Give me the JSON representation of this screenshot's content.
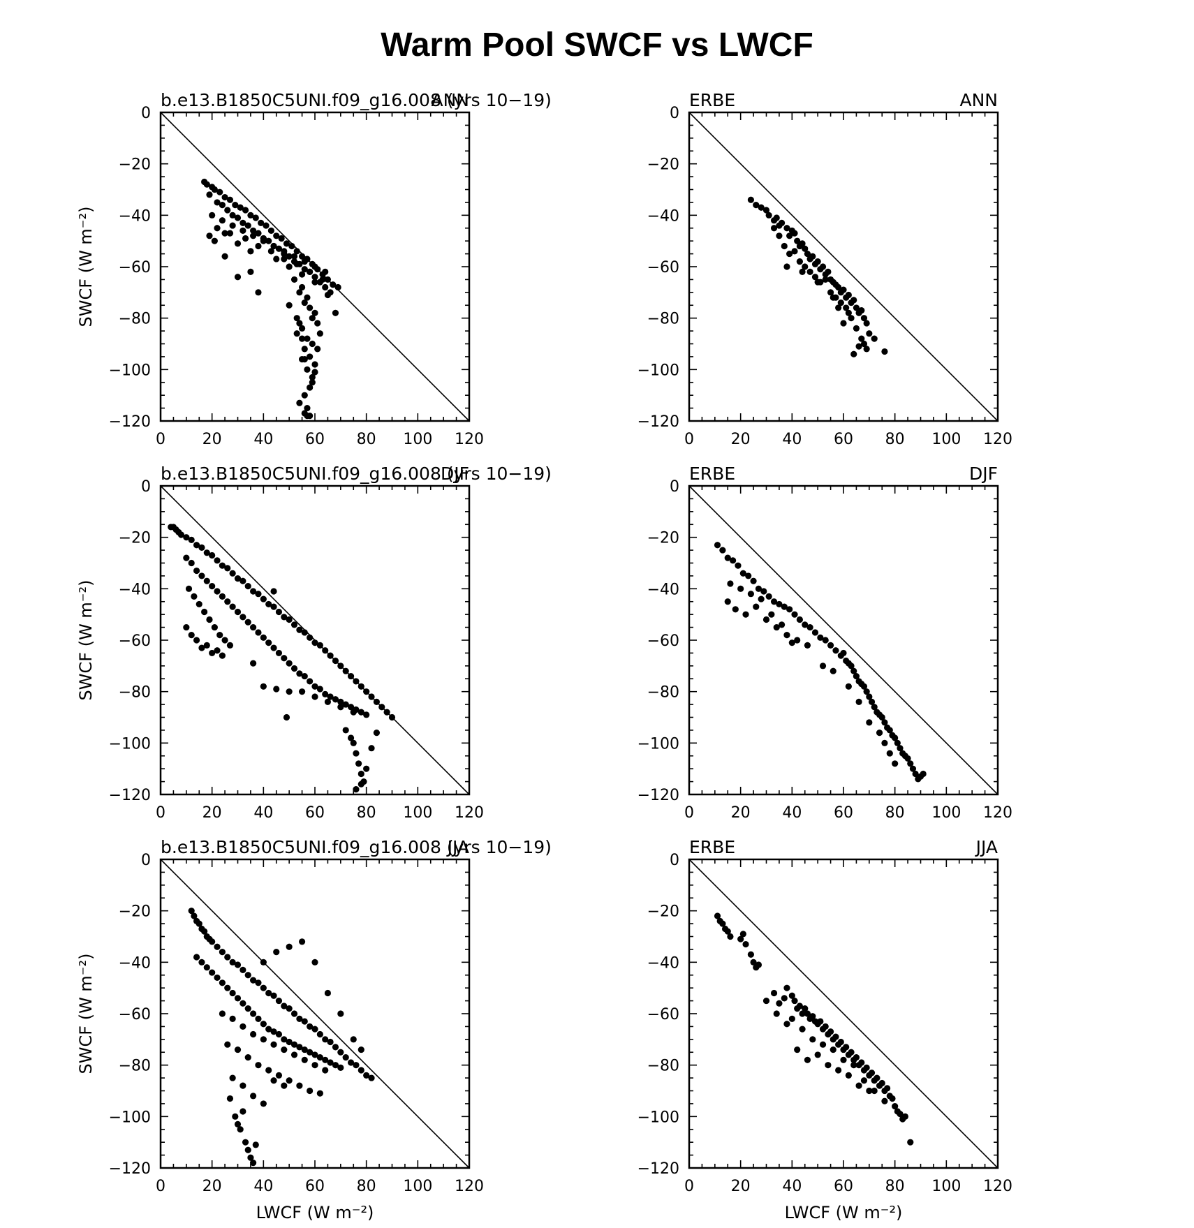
{
  "figure": {
    "title": "Warm Pool SWCF vs LWCF"
  },
  "chart_data": [
    {
      "type": "scatter",
      "left_label": "b.e13.B1850C5UNI.f09_g16.008 (yrs  10−19)",
      "right_label": "ANN",
      "xlabel": "",
      "ylabel": "SWCF (W m⁻²)",
      "xlim": [
        0,
        120
      ],
      "ylim": [
        -120,
        0
      ],
      "xticks": [
        "0",
        "20",
        "40",
        "60",
        "80",
        "100",
        "120"
      ],
      "yticks": [
        "0",
        "−20",
        "−40",
        "−60",
        "−80",
        "−100",
        "−120"
      ],
      "diagonal": true,
      "x": [
        17,
        18,
        20,
        21,
        23,
        25,
        27,
        29,
        31,
        33,
        35,
        37,
        39,
        41,
        43,
        45,
        47,
        49,
        51,
        53,
        55,
        57,
        59,
        61,
        63,
        65,
        67,
        69,
        19,
        22,
        24,
        26,
        28,
        30,
        32,
        34,
        36,
        38,
        40,
        42,
        44,
        46,
        48,
        50,
        52,
        54,
        56,
        58,
        60,
        62,
        64,
        66,
        20,
        24,
        28,
        32,
        36,
        40,
        44,
        48,
        52,
        56,
        60,
        64,
        22,
        27,
        33,
        38,
        43,
        48,
        53,
        58,
        63,
        19,
        21,
        25,
        30,
        35,
        40,
        45,
        50,
        55,
        60,
        65,
        68,
        52,
        54,
        55,
        56,
        57,
        58,
        59,
        60,
        61,
        62,
        55,
        57,
        59,
        61,
        53,
        56,
        58,
        60,
        57,
        59,
        55,
        58,
        56,
        60,
        54,
        57,
        59,
        56,
        58,
        57,
        55,
        54,
        56,
        50,
        53,
        30,
        38,
        25,
        35
      ],
      "y": [
        -27,
        -28,
        -29,
        -30,
        -31,
        -33,
        -34,
        -36,
        -37,
        -38,
        -40,
        -41,
        -43,
        -44,
        -46,
        -48,
        -49,
        -51,
        -52,
        -54,
        -56,
        -57,
        -59,
        -61,
        -63,
        -65,
        -67,
        -68,
        -32,
        -35,
        -36,
        -38,
        -40,
        -41,
        -43,
        -44,
        -46,
        -47,
        -49,
        -50,
        -52,
        -53,
        -55,
        -56,
        -58,
        -59,
        -61,
        -62,
        -64,
        -66,
        -68,
        -70,
        -40,
        -42,
        -44,
        -46,
        -48,
        -50,
        -52,
        -54,
        -56,
        -58,
        -60,
        -62,
        -45,
        -47,
        -49,
        -52,
        -54,
        -57,
        -59,
        -62,
        -65,
        -48,
        -50,
        -47,
        -51,
        -54,
        -49,
        -57,
        -60,
        -63,
        -66,
        -71,
        -78,
        -65,
        -70,
        -68,
        -74,
        -72,
        -76,
        -80,
        -78,
        -82,
        -86,
        -84,
        -88,
        -90,
        -92,
        -86,
        -92,
        -95,
        -98,
        -100,
        -103,
        -96,
        -107,
        -110,
        -101,
        -113,
        -115,
        -105,
        -117,
        -118,
        -118,
        -88,
        -82,
        -96,
        -75,
        -80,
        -64,
        -70,
        -56,
        -62
      ]
    },
    {
      "type": "scatter",
      "left_label": "ERBE",
      "right_label": "ANN",
      "xlabel": "",
      "ylabel": "",
      "xlim": [
        0,
        120
      ],
      "ylim": [
        -120,
        0
      ],
      "xticks": [
        "0",
        "20",
        "40",
        "60",
        "80",
        "100",
        "120"
      ],
      "yticks": [
        "0",
        "−20",
        "−40",
        "−60",
        "−80",
        "−100",
        "−120"
      ],
      "diagonal": true,
      "x": [
        24,
        26,
        28,
        30,
        31,
        33,
        34,
        35,
        36,
        38,
        39,
        40,
        41,
        42,
        43,
        44,
        45,
        46,
        47,
        48,
        49,
        50,
        51,
        52,
        53,
        54,
        55,
        56,
        57,
        58,
        59,
        60,
        61,
        62,
        63,
        64,
        65,
        66,
        67,
        68,
        69,
        70,
        72,
        76,
        33,
        35,
        37,
        39,
        41,
        43,
        45,
        47,
        49,
        51,
        53,
        55,
        57,
        59,
        61,
        63,
        65,
        67,
        69,
        38,
        44,
        50,
        56,
        62,
        68,
        64,
        66,
        60,
        58
      ],
      "y": [
        -34,
        -36,
        -37,
        -38,
        -40,
        -42,
        -41,
        -44,
        -43,
        -45,
        -48,
        -46,
        -47,
        -50,
        -52,
        -51,
        -53,
        -55,
        -57,
        -56,
        -59,
        -58,
        -61,
        -60,
        -63,
        -62,
        -65,
        -66,
        -67,
        -68,
        -70,
        -69,
        -72,
        -71,
        -74,
        -73,
        -76,
        -78,
        -77,
        -80,
        -82,
        -86,
        -88,
        -93,
        -45,
        -48,
        -52,
        -55,
        -54,
        -58,
        -60,
        -62,
        -64,
        -66,
        -65,
        -70,
        -72,
        -74,
        -76,
        -80,
        -84,
        -88,
        -92,
        -60,
        -62,
        -66,
        -72,
        -78,
        -90,
        -94,
        -91,
        -82,
        -76
      ]
    },
    {
      "type": "scatter",
      "left_label": "b.e13.B1850C5UNI.f09_g16.008 (yrs  10−19)",
      "right_label": "DJF",
      "xlabel": "",
      "ylabel": "SWCF (W m⁻²)",
      "xlim": [
        0,
        120
      ],
      "ylim": [
        -120,
        0
      ],
      "xticks": [
        "0",
        "20",
        "40",
        "60",
        "80",
        "100",
        "120"
      ],
      "yticks": [
        "0",
        "−20",
        "−40",
        "−60",
        "−80",
        "−100",
        "−120"
      ],
      "diagonal": true,
      "x": [
        4,
        5,
        6,
        7,
        8,
        10,
        12,
        14,
        16,
        18,
        20,
        22,
        24,
        26,
        28,
        30,
        32,
        34,
        36,
        38,
        40,
        42,
        44,
        46,
        48,
        50,
        52,
        54,
        56,
        58,
        60,
        62,
        64,
        66,
        68,
        70,
        72,
        74,
        76,
        78,
        80,
        82,
        84,
        86,
        88,
        90,
        10,
        12,
        14,
        16,
        18,
        20,
        22,
        24,
        26,
        28,
        30,
        32,
        34,
        36,
        38,
        40,
        42,
        44,
        46,
        48,
        50,
        52,
        54,
        56,
        58,
        60,
        62,
        64,
        66,
        68,
        70,
        72,
        74,
        76,
        78,
        80,
        11,
        13,
        15,
        17,
        19,
        21,
        23,
        25,
        27,
        10,
        12,
        14,
        16,
        18,
        20,
        22,
        24,
        40,
        45,
        50,
        55,
        60,
        65,
        70,
        75,
        44,
        36,
        49,
        72,
        74,
        75,
        76,
        77,
        78,
        79,
        76,
        78,
        80,
        82,
        84
      ],
      "y": [
        -16,
        -16,
        -17,
        -18,
        -19,
        -20,
        -21,
        -23,
        -24,
        -26,
        -27,
        -29,
        -31,
        -32,
        -34,
        -36,
        -37,
        -39,
        -41,
        -42,
        -44,
        -46,
        -47,
        -49,
        -51,
        -52,
        -54,
        -56,
        -57,
        -59,
        -61,
        -62,
        -64,
        -66,
        -68,
        -70,
        -72,
        -74,
        -76,
        -78,
        -80,
        -82,
        -84,
        -86,
        -88,
        -90,
        -28,
        -30,
        -33,
        -35,
        -37,
        -39,
        -41,
        -43,
        -45,
        -47,
        -49,
        -51,
        -53,
        -55,
        -57,
        -59,
        -61,
        -63,
        -65,
        -67,
        -69,
        -71,
        -73,
        -74,
        -76,
        -78,
        -79,
        -81,
        -82,
        -83,
        -84,
        -85,
        -86,
        -87,
        -88,
        -89,
        -40,
        -43,
        -46,
        -49,
        -52,
        -55,
        -58,
        -60,
        -62,
        -55,
        -58,
        -60,
        -63,
        -62,
        -65,
        -64,
        -66,
        -78,
        -79,
        -80,
        -80,
        -82,
        -84,
        -86,
        -88,
        -41,
        -69,
        -90,
        -95,
        -98,
        -100,
        -104,
        -108,
        -112,
        -115,
        -118,
        -116,
        -110,
        -102,
        -96
      ]
    },
    {
      "type": "scatter",
      "left_label": "ERBE",
      "right_label": "DJF",
      "xlabel": "",
      "ylabel": "",
      "xlim": [
        0,
        120
      ],
      "ylim": [
        -120,
        0
      ],
      "xticks": [
        "0",
        "20",
        "40",
        "60",
        "80",
        "100",
        "120"
      ],
      "yticks": [
        "0",
        "−20",
        "−40",
        "−60",
        "−80",
        "−100",
        "−120"
      ],
      "diagonal": true,
      "x": [
        11,
        13,
        15,
        17,
        19,
        21,
        23,
        25,
        27,
        29,
        31,
        33,
        35,
        37,
        39,
        41,
        43,
        45,
        47,
        49,
        51,
        53,
        55,
        57,
        59,
        60,
        61,
        62,
        63,
        64,
        65,
        66,
        67,
        68,
        69,
        70,
        71,
        72,
        73,
        74,
        75,
        76,
        77,
        78,
        79,
        80,
        81,
        82,
        83,
        84,
        85,
        86,
        87,
        88,
        89,
        90,
        91,
        15,
        18,
        22,
        26,
        30,
        34,
        38,
        42,
        46,
        16,
        20,
        24,
        28,
        32,
        36,
        40,
        52,
        56,
        62,
        66,
        70,
        74,
        76,
        78,
        80
      ],
      "y": [
        -23,
        -25,
        -28,
        -29,
        -31,
        -34,
        -35,
        -37,
        -40,
        -41,
        -43,
        -45,
        -46,
        -47,
        -48,
        -50,
        -52,
        -54,
        -55,
        -57,
        -59,
        -60,
        -62,
        -64,
        -66,
        -65,
        -68,
        -69,
        -70,
        -72,
        -74,
        -76,
        -77,
        -78,
        -80,
        -82,
        -84,
        -86,
        -88,
        -89,
        -90,
        -92,
        -94,
        -95,
        -97,
        -98,
        -100,
        -102,
        -104,
        -105,
        -106,
        -108,
        -110,
        -112,
        -114,
        -113,
        -112,
        -45,
        -48,
        -50,
        -47,
        -52,
        -55,
        -58,
        -60,
        -62,
        -38,
        -40,
        -42,
        -44,
        -50,
        -54,
        -61,
        -70,
        -72,
        -78,
        -84,
        -92,
        -96,
        -100,
        -104,
        -108
      ]
    },
    {
      "type": "scatter",
      "left_label": "b.e13.B1850C5UNI.f09_g16.008 (yrs  10−19)",
      "right_label": "JJA",
      "xlabel": "LWCF (W m⁻²)",
      "ylabel": "SWCF (W m⁻²)",
      "xlim": [
        0,
        120
      ],
      "ylim": [
        -120,
        0
      ],
      "xticks": [
        "0",
        "20",
        "40",
        "60",
        "80",
        "100",
        "120"
      ],
      "yticks": [
        "0",
        "−20",
        "−40",
        "−60",
        "−80",
        "−100",
        "−120"
      ],
      "diagonal": true,
      "x": [
        12,
        13,
        14,
        15,
        16,
        17,
        18,
        19,
        20,
        22,
        24,
        26,
        28,
        30,
        32,
        34,
        36,
        38,
        40,
        42,
        44,
        46,
        48,
        50,
        52,
        54,
        56,
        58,
        60,
        62,
        64,
        66,
        68,
        70,
        72,
        74,
        76,
        78,
        80,
        82,
        14,
        16,
        18,
        20,
        22,
        24,
        26,
        28,
        30,
        32,
        34,
        36,
        38,
        40,
        42,
        44,
        46,
        48,
        50,
        52,
        54,
        56,
        58,
        60,
        62,
        64,
        66,
        68,
        70,
        24,
        28,
        32,
        36,
        40,
        44,
        48,
        52,
        56,
        60,
        64,
        26,
        30,
        34,
        38,
        42,
        46,
        50,
        54,
        58,
        62,
        28,
        32,
        36,
        40,
        44,
        48,
        27,
        29,
        31,
        33,
        34,
        35,
        36,
        37,
        32,
        30,
        40,
        45,
        50,
        55,
        60,
        65,
        70,
        75,
        78
      ],
      "y": [
        -20,
        -22,
        -24,
        -25,
        -27,
        -28,
        -30,
        -31,
        -32,
        -34,
        -36,
        -38,
        -40,
        -41,
        -43,
        -45,
        -47,
        -48,
        -50,
        -52,
        -53,
        -55,
        -57,
        -58,
        -60,
        -62,
        -63,
        -65,
        -66,
        -68,
        -70,
        -71,
        -73,
        -75,
        -77,
        -79,
        -80,
        -82,
        -84,
        -85,
        -38,
        -40,
        -42,
        -44,
        -46,
        -48,
        -50,
        -52,
        -54,
        -56,
        -58,
        -60,
        -62,
        -64,
        -66,
        -67,
        -68,
        -70,
        -71,
        -72,
        -73,
        -74,
        -75,
        -76,
        -77,
        -78,
        -79,
        -80,
        -81,
        -60,
        -62,
        -65,
        -68,
        -70,
        -72,
        -74,
        -76,
        -78,
        -80,
        -82,
        -72,
        -74,
        -77,
        -80,
        -82,
        -84,
        -86,
        -88,
        -90,
        -91,
        -85,
        -88,
        -92,
        -95,
        -86,
        -88,
        -93,
        -100,
        -105,
        -110,
        -113,
        -116,
        -118,
        -111,
        -98,
        -103,
        -40,
        -36,
        -34,
        -32,
        -40,
        -52,
        -60,
        -70,
        -74
      ]
    },
    {
      "type": "scatter",
      "left_label": "ERBE",
      "right_label": "JJA",
      "xlabel": "LWCF (W m⁻²)",
      "ylabel": "",
      "xlim": [
        0,
        120
      ],
      "ylim": [
        -120,
        0
      ],
      "xticks": [
        "0",
        "20",
        "40",
        "60",
        "80",
        "100",
        "120"
      ],
      "yticks": [
        "0",
        "−20",
        "−40",
        "−60",
        "−80",
        "−100",
        "−120"
      ],
      "diagonal": true,
      "x": [
        11,
        12,
        13,
        14,
        15,
        16,
        20,
        21,
        22,
        24,
        25,
        26,
        27,
        30,
        33,
        35,
        37,
        38,
        40,
        41,
        42,
        43,
        44,
        45,
        46,
        47,
        48,
        49,
        50,
        51,
        52,
        53,
        54,
        55,
        56,
        57,
        58,
        59,
        60,
        61,
        62,
        63,
        64,
        65,
        66,
        67,
        68,
        69,
        70,
        71,
        72,
        73,
        74,
        75,
        76,
        77,
        78,
        79,
        80,
        81,
        82,
        83,
        84,
        86,
        40,
        44,
        48,
        52,
        56,
        60,
        64,
        68,
        72,
        76,
        50,
        54,
        58,
        62,
        66,
        70,
        42,
        46,
        34,
        38
      ],
      "y": [
        -22,
        -24,
        -25,
        -27,
        -28,
        -30,
        -31,
        -29,
        -33,
        -37,
        -40,
        -42,
        -41,
        -55,
        -52,
        -56,
        -54,
        -50,
        -53,
        -55,
        -58,
        -57,
        -60,
        -58,
        -60,
        -62,
        -61,
        -63,
        -64,
        -63,
        -66,
        -65,
        -68,
        -67,
        -70,
        -69,
        -72,
        -71,
        -74,
        -73,
        -76,
        -75,
        -78,
        -77,
        -80,
        -79,
        -82,
        -81,
        -84,
        -83,
        -86,
        -85,
        -88,
        -87,
        -90,
        -89,
        -92,
        -93,
        -96,
        -98,
        -99,
        -101,
        -100,
        -110,
        -62,
        -66,
        -70,
        -72,
        -74,
        -78,
        -80,
        -86,
        -90,
        -94,
        -76,
        -80,
        -82,
        -84,
        -88,
        -90,
        -74,
        -78,
        -60,
        -64
      ]
    }
  ]
}
